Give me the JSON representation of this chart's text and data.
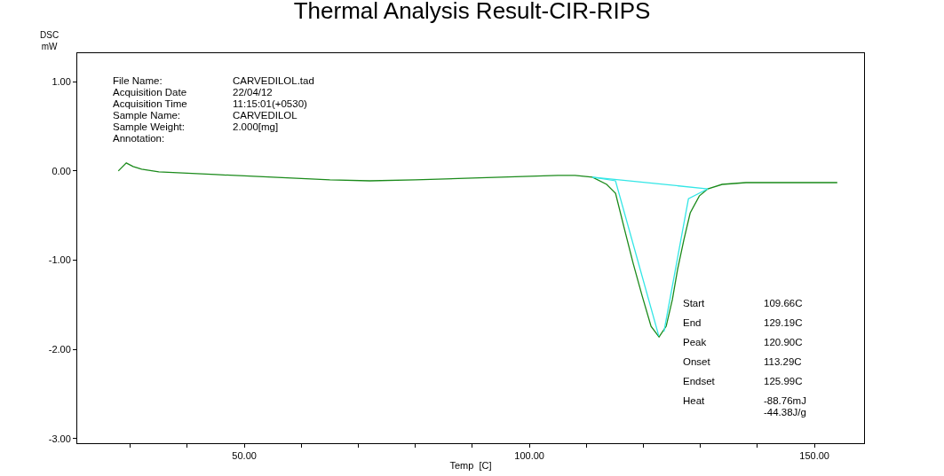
{
  "chart_data": {
    "type": "line",
    "title": "Thermal Analysis Result-CIR-RIPS",
    "xlabel": "Temp  [C]",
    "ylabel": "DSC\nmW",
    "series": [
      {
        "color": "#1a8a1a",
        "x": [
          27.9,
          29.3,
          30.5,
          32,
          35,
          45,
          55,
          65,
          72,
          80,
          90,
          100,
          105,
          108,
          111.06,
          113.55,
          115.11,
          116.67,
          118.22,
          119.78,
          121.34,
          122.74,
          123.99,
          125.08,
          126.0,
          127.1,
          128.2,
          129.8,
          131.3,
          133.8,
          138,
          154
        ],
        "values": [
          0.0,
          0.09,
          0.05,
          0.02,
          -0.01,
          -0.04,
          -0.07,
          -0.1,
          -0.11,
          -0.1,
          -0.08,
          -0.06,
          -0.05,
          -0.05,
          -0.07,
          -0.15,
          -0.25,
          -0.65,
          -1.04,
          -1.4,
          -1.74,
          -1.86,
          -1.74,
          -1.44,
          -1.1,
          -0.77,
          -0.47,
          -0.28,
          -0.2,
          -0.15,
          -0.13,
          -0.13
        ]
      },
      {
        "color": "#33e6e6",
        "x": [
          111.06,
          131.3
        ],
        "values": [
          -0.07,
          -0.2
        ]
      },
      {
        "color": "#33e6e6",
        "x": [
          111.06,
          115.1,
          122.7
        ],
        "values": [
          -0.07,
          -0.11,
          -1.85
        ]
      },
      {
        "color": "#33e6e6",
        "x": [
          131.3,
          127.9,
          123.6
        ],
        "values": [
          -0.2,
          -0.31,
          -1.8
        ]
      }
    ],
    "xlim": [
      20.7,
      158.7
    ],
    "ylim": [
      -3.05,
      1.32
    ],
    "xticks": [
      {
        "value": 30,
        "label": null
      },
      {
        "value": 40,
        "label": null
      },
      {
        "value": 50,
        "label": "50.00"
      },
      {
        "value": 60,
        "label": null
      },
      {
        "value": 70,
        "label": null
      },
      {
        "value": 80,
        "label": null
      },
      {
        "value": 90,
        "label": null
      },
      {
        "value": 100,
        "label": "100.00"
      },
      {
        "value": 110,
        "label": null
      },
      {
        "value": 120,
        "label": null
      },
      {
        "value": 130,
        "label": null
      },
      {
        "value": 140,
        "label": null
      },
      {
        "value": 150,
        "label": "150.00"
      }
    ],
    "yticks": [
      {
        "value": 1,
        "label": "1.00"
      },
      {
        "value": 0,
        "label": "0.00"
      },
      {
        "value": -1,
        "label": "-1.00"
      },
      {
        "value": -2,
        "label": "-2.00"
      },
      {
        "value": -3,
        "label": "-3.00"
      }
    ],
    "marker": "none",
    "line_style": "solid",
    "annotations": [
      "File Name:\tCARVEDILOL.tad",
      "Acquisition Date\t22/04/12",
      "Acquisition Time\t11:15:01(+0530)",
      "Sample Name:\tCARVEDILOL",
      "Sample Weight:\t2.000[mg]",
      "Annotation:",
      "Start\t109.66C",
      "End\t129.19C",
      "Peak\t120.90C",
      "Onset\t113.29C",
      "Endset\t125.99C",
      "Heat\t-88.76mJ",
      "\t-44.38J/g"
    ]
  }
}
